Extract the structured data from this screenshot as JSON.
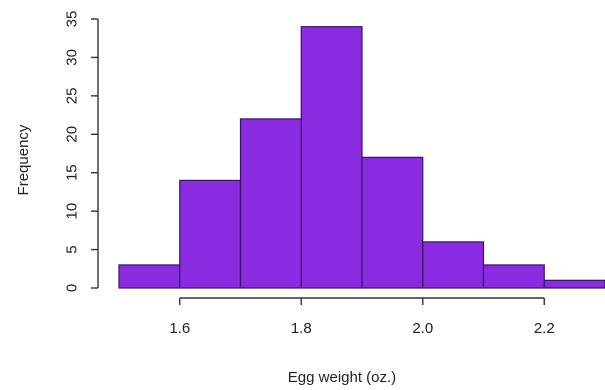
{
  "chart_data": {
    "type": "histogram",
    "title": "",
    "xlabel": "Egg weight (oz.)",
    "ylabel": "Frequency",
    "bins": [
      {
        "start": 1.5,
        "end": 1.6,
        "count": 3
      },
      {
        "start": 1.6,
        "end": 1.7,
        "count": 14
      },
      {
        "start": 1.7,
        "end": 1.8,
        "count": 22
      },
      {
        "start": 1.8,
        "end": 1.9,
        "count": 34
      },
      {
        "start": 1.9,
        "end": 2.0,
        "count": 17
      },
      {
        "start": 2.0,
        "end": 2.1,
        "count": 6
      },
      {
        "start": 2.1,
        "end": 2.2,
        "count": 3
      },
      {
        "start": 2.2,
        "end": 2.3,
        "count": 1
      }
    ],
    "xlim": [
      1.5,
      2.3
    ],
    "ylim": [
      0,
      35
    ],
    "xticks": [
      "1.6",
      "1.8",
      "2.0",
      "2.2"
    ],
    "yticks": [
      "0",
      "5",
      "10",
      "15",
      "20",
      "25",
      "30",
      "35"
    ],
    "grid": false,
    "bar_color": "#8a2be2",
    "edge_color": "#3a1560"
  }
}
